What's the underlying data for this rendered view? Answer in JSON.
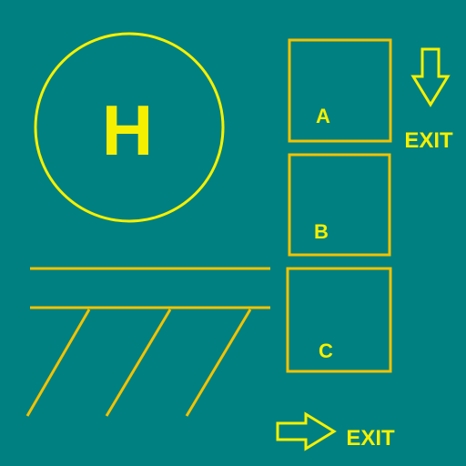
{
  "colors": {
    "background": "#008080",
    "helipad_stroke": "#f5f000",
    "helipad_text": "#f5f000",
    "marking_stroke": "#f2c200",
    "label_text": "#f5f000",
    "arrow_stroke": "#f5f000"
  },
  "helipad": {
    "letter": "H",
    "icon": "helipad-circle"
  },
  "spaces": [
    {
      "label": "A"
    },
    {
      "label": "B"
    },
    {
      "label": "C"
    }
  ],
  "exits": [
    {
      "label": "EXIT",
      "arrow_direction": "down",
      "icon": "arrow-down-icon"
    },
    {
      "label": "EXIT",
      "arrow_direction": "right",
      "icon": "arrow-right-icon"
    }
  ]
}
